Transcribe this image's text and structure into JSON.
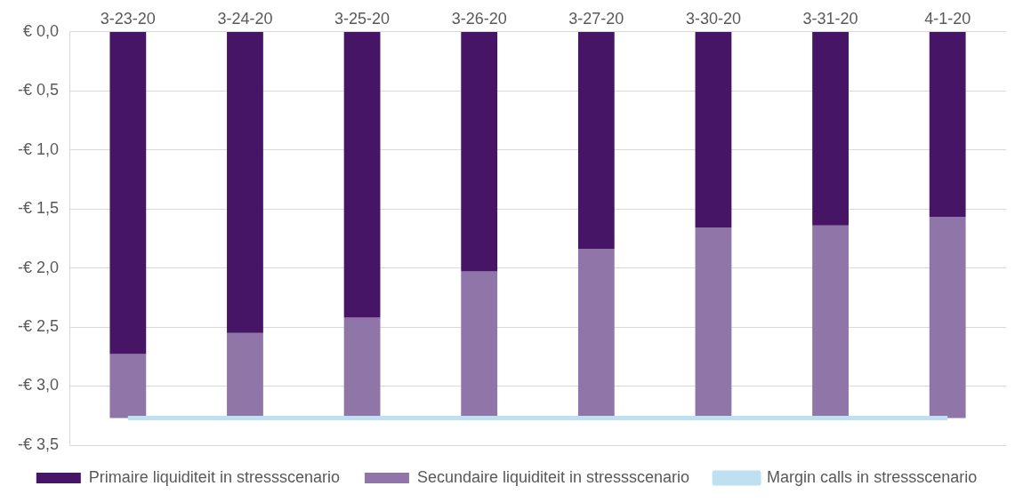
{
  "chart_data": {
    "type": "bar",
    "stacked": true,
    "categories": [
      "3-23-20",
      "3-24-20",
      "3-25-20",
      "3-26-20",
      "3-27-20",
      "3-30-20",
      "3-31-20",
      "4-1-20"
    ],
    "series": [
      {
        "name": "Primaire liquiditeit in stressscenario",
        "color": "#461566",
        "values": [
          -2.73,
          -2.55,
          -2.42,
          -2.03,
          -1.84,
          -1.66,
          -1.64,
          -1.57
        ]
      },
      {
        "name": "Secundaire liquiditeit in stressscenario",
        "color": "#8f75a8",
        "values": [
          -0.54,
          -0.72,
          -0.85,
          -1.24,
          -1.43,
          -1.61,
          -1.63,
          -1.7
        ]
      },
      {
        "name": "Margin calls in stressscenario",
        "type": "line",
        "color": "#bfe0f0",
        "values": [
          -3.27,
          -3.27,
          -3.27,
          -3.27,
          -3.27,
          -3.27,
          -3.27,
          -3.27
        ],
        "marker": "none"
      }
    ],
    "ylim": [
      -3.5,
      0
    ],
    "yticks": [
      {
        "value": 0,
        "label": "€ 0,0"
      },
      {
        "value": -0.5,
        "label": "-€ 0,5"
      },
      {
        "value": -1,
        "label": "-€ 1,0"
      },
      {
        "value": -1.5,
        "label": "-€ 1,5"
      },
      {
        "value": -2,
        "label": "-€ 2,0"
      },
      {
        "value": -2.5,
        "label": "-€ 2,5"
      },
      {
        "value": -3,
        "label": "-€ 3,0"
      },
      {
        "value": -3.5,
        "label": "-€ 3,5"
      }
    ],
    "grid": "y",
    "legend": "bottom"
  }
}
